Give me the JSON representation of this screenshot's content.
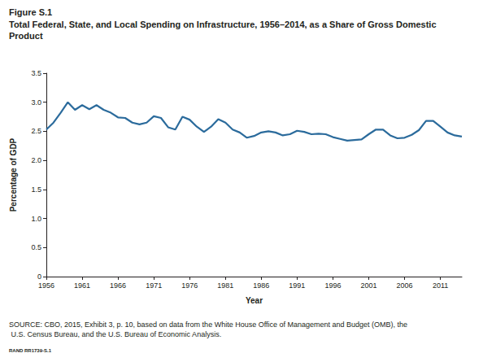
{
  "chart_data": {
    "type": "line",
    "title": "Figure S.1",
    "subtitle": "Total Federal, State, and Local Spending on Infrastructure, 1956–2014, as a Share of Gross Domestic Product",
    "x_label": "Year",
    "y_label": "Percentage of GDP",
    "annotations": [
      "SOURCE: CBO, 2015, Exhibit 3, p. 10, based on data from the White House Office of Management and Budget (OMB), the U.S. Census Bureau, and the U.S. Bureau of Economic Analysis.",
      "RAND RR1739-S.1"
    ],
    "x": [
      1956,
      1957,
      1958,
      1959,
      1960,
      1961,
      1962,
      1963,
      1964,
      1965,
      1966,
      1967,
      1968,
      1969,
      1970,
      1971,
      1972,
      1973,
      1974,
      1975,
      1976,
      1977,
      1978,
      1979,
      1980,
      1981,
      1982,
      1983,
      1984,
      1985,
      1986,
      1987,
      1988,
      1989,
      1990,
      1991,
      1992,
      1993,
      1994,
      1995,
      1996,
      1997,
      1998,
      1999,
      2000,
      2001,
      2002,
      2003,
      2004,
      2005,
      2006,
      2007,
      2008,
      2009,
      2010,
      2011,
      2012,
      2013,
      2014
    ],
    "values": [
      2.53,
      2.65,
      2.82,
      3.0,
      2.87,
      2.95,
      2.88,
      2.95,
      2.87,
      2.82,
      2.74,
      2.73,
      2.65,
      2.62,
      2.65,
      2.76,
      2.73,
      2.57,
      2.53,
      2.75,
      2.7,
      2.58,
      2.49,
      2.58,
      2.71,
      2.65,
      2.53,
      2.48,
      2.39,
      2.42,
      2.48,
      2.5,
      2.48,
      2.43,
      2.45,
      2.51,
      2.49,
      2.45,
      2.46,
      2.45,
      2.4,
      2.37,
      2.34,
      2.35,
      2.36,
      2.45,
      2.53,
      2.53,
      2.43,
      2.38,
      2.39,
      2.44,
      2.52,
      2.68,
      2.68,
      2.58,
      2.48,
      2.43,
      2.41
    ],
    "color": "#2b6b9c",
    "xlim": [
      1956,
      2014
    ],
    "xticks": [
      1956,
      1961,
      1966,
      1971,
      1976,
      1981,
      1986,
      1991,
      1996,
      2001,
      2006,
      2011
    ],
    "ylim": [
      0,
      3.5
    ],
    "yticks": [
      0,
      0.5,
      {
        "value": 1,
        "label": "1.0"
      },
      1.5,
      {
        "value": 2,
        "label": "2.0"
      },
      2.5,
      {
        "value": 3,
        "label": "3.0"
      },
      3.5
    ],
    "grid": false
  }
}
